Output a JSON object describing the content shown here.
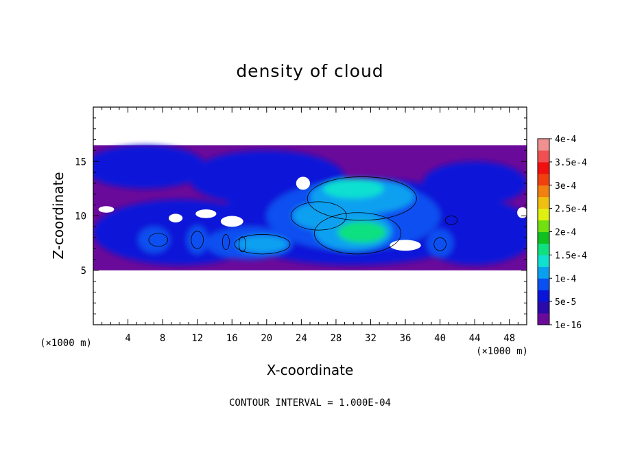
{
  "chart_data": {
    "type": "heatmap",
    "title": "density of cloud",
    "xlabel": "X-coordinate",
    "ylabel": "Z-coordinate",
    "x_unit": "(×1000 m)",
    "xlim": [
      0,
      50
    ],
    "ylim": [
      0,
      20
    ],
    "x_ticks": [
      4,
      8,
      12,
      16,
      20,
      24,
      28,
      32,
      36,
      40,
      44,
      48
    ],
    "y_ticks": [
      5,
      10,
      15
    ],
    "contour_interval_text": "CONTOUR INTERVAL = 1.000E-04",
    "colorbar": {
      "labels": [
        "1e-16",
        "5e-5",
        "1e-4",
        "1.5e-4",
        "2e-4",
        "2.5e-4",
        "3e-4",
        "3.5e-4",
        "4e-4"
      ],
      "colors": [
        "#6a0a9a",
        "#2a0aa8",
        "#0a14d8",
        "#0a50f0",
        "#0aa0f0",
        "#10e0d0",
        "#10e080",
        "#10c020",
        "#70e010",
        "#e0f010",
        "#f0c010",
        "#f08010",
        "#f04010",
        "#f01010",
        "#f05050",
        "#f09090"
      ]
    },
    "field": {
      "cloud_layer_z": [
        5,
        16.5
      ],
      "regions": [
        {
          "level": 2,
          "cx": 6,
          "cz": 14.5,
          "rx": 7,
          "rz": 2
        },
        {
          "level": 2,
          "cx": 20,
          "cz": 13.5,
          "rx": 9,
          "rz": 2.5
        },
        {
          "level": 2,
          "cx": 44,
          "cz": 13,
          "rx": 6,
          "rz": 2
        },
        {
          "level": 2,
          "cx": 10,
          "cz": 8.5,
          "rx": 10,
          "rz": 3
        },
        {
          "level": 2,
          "cx": 30,
          "cz": 9.5,
          "rx": 16,
          "rz": 4
        },
        {
          "level": 2,
          "cx": 44,
          "cz": 8.5,
          "rx": 7,
          "rz": 3
        },
        {
          "level": 3,
          "cx": 30,
          "cz": 10,
          "rx": 10,
          "rz": 3.2
        },
        {
          "level": 3,
          "cx": 18,
          "cz": 7.5,
          "rx": 5,
          "rz": 1.5
        },
        {
          "level": 3,
          "cx": 7,
          "cz": 7.8,
          "rx": 1.8,
          "rz": 1.2
        },
        {
          "level": 3,
          "cx": 12,
          "cz": 7.8,
          "rx": 1.2,
          "rz": 1.3
        },
        {
          "level": 3,
          "cx": 40,
          "cz": 7.5,
          "rx": 1.5,
          "rz": 1.3
        },
        {
          "level": 4,
          "cx": 31,
          "cz": 11.8,
          "rx": 6,
          "rz": 1.6
        },
        {
          "level": 4,
          "cx": 26,
          "cz": 10,
          "rx": 3,
          "rz": 1.2
        },
        {
          "level": 4,
          "cx": 30,
          "cz": 8.6,
          "rx": 4.5,
          "rz": 1.8
        },
        {
          "level": 4,
          "cx": 19.5,
          "cz": 7.4,
          "rx": 3,
          "rz": 0.8
        },
        {
          "level": 5,
          "cx": 30,
          "cz": 12.5,
          "rx": 3.5,
          "rz": 0.9
        },
        {
          "level": 6,
          "cx": 31,
          "cz": 8.5,
          "rx": 2.8,
          "rz": 1.0
        }
      ],
      "contours": [
        {
          "cx": 31,
          "cz": 11.6,
          "rx": 6.3,
          "rz": 2.0
        },
        {
          "cx": 30.5,
          "cz": 8.4,
          "rx": 5,
          "rz": 1.9
        },
        {
          "cx": 26,
          "cz": 10,
          "rx": 3.2,
          "rz": 1.3
        },
        {
          "cx": 19.5,
          "cz": 7.4,
          "rx": 3.2,
          "rz": 0.9
        },
        {
          "cx": 7.5,
          "cz": 7.8,
          "rx": 1.1,
          "rz": 0.6
        },
        {
          "cx": 12,
          "cz": 7.8,
          "rx": 0.7,
          "rz": 0.8
        },
        {
          "cx": 15.3,
          "cz": 7.6,
          "rx": 0.4,
          "rz": 0.7
        },
        {
          "cx": 17.2,
          "cz": 7.4,
          "rx": 0.4,
          "rz": 0.7
        },
        {
          "cx": 40,
          "cz": 7.4,
          "rx": 0.7,
          "rz": 0.6
        },
        {
          "cx": 41.3,
          "cz": 9.6,
          "rx": 0.7,
          "rz": 0.4
        }
      ],
      "gaps": [
        {
          "cx": 24.2,
          "cz": 13,
          "rx": 0.8,
          "rz": 0.6
        },
        {
          "cx": 9.5,
          "cz": 9.8,
          "rx": 0.8,
          "rz": 0.4
        },
        {
          "cx": 16,
          "cz": 9.5,
          "rx": 1.3,
          "rz": 0.5
        },
        {
          "cx": 13,
          "cz": 10.2,
          "rx": 1.2,
          "rz": 0.4
        },
        {
          "cx": 36,
          "cz": 7.3,
          "rx": 1.8,
          "rz": 0.5
        },
        {
          "cx": 1.5,
          "cz": 10.6,
          "rx": 0.9,
          "rz": 0.3
        },
        {
          "cx": 49.5,
          "cz": 10.3,
          "rx": 0.6,
          "rz": 0.5
        }
      ]
    }
  }
}
